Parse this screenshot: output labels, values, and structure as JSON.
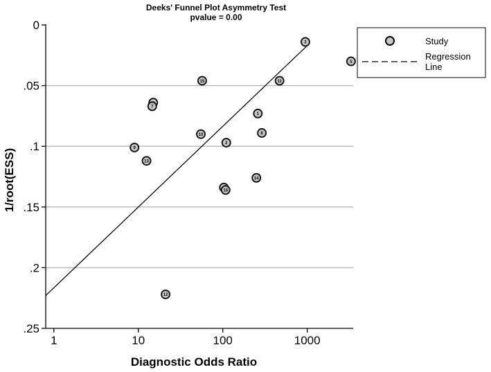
{
  "chart_data": {
    "type": "scatter",
    "title": "Deeks' Funnel Plot Asymmetry Test",
    "subtitle": "pvalue  =   0.00",
    "xlabel": "Diagnostic Odds Ratio",
    "ylabel": "1/root(ESS)",
    "x_scale": "log",
    "xlim": [
      0.8,
      3500
    ],
    "ylim": [
      0.25,
      0
    ],
    "y_inverted": true,
    "x_ticks": [
      "1",
      "10",
      "100",
      "1000"
    ],
    "x_tick_values": [
      1,
      10,
      100,
      1000
    ],
    "y_ticks": [
      "0",
      ".05",
      ".1",
      ".15",
      ".2",
      ".25"
    ],
    "y_tick_values": [
      0,
      0.05,
      0.1,
      0.15,
      0.2,
      0.25
    ],
    "grid": "horizontal",
    "legend_position": "right",
    "legend": [
      {
        "label": "Study",
        "marker": "circle"
      },
      {
        "label": "Regression\nLine",
        "marker": "dashed-line"
      }
    ],
    "series": [
      {
        "name": "Study",
        "points": [
          {
            "label": "3",
            "x": 950,
            "y": 0.014
          },
          {
            "label": "5",
            "x": 3300,
            "y": 0.03
          },
          {
            "label": "11",
            "x": 470,
            "y": 0.046
          },
          {
            "label": "15",
            "x": 57,
            "y": 0.046
          },
          {
            "label": "6",
            "x": 15,
            "y": 0.064
          },
          {
            "label": "7",
            "x": 14.6,
            "y": 0.067
          },
          {
            "label": "1",
            "x": 260,
            "y": 0.073
          },
          {
            "label": "8",
            "x": 290,
            "y": 0.089
          },
          {
            "label": "10",
            "x": 55,
            "y": 0.09
          },
          {
            "label": "2",
            "x": 110,
            "y": 0.097
          },
          {
            "label": "9",
            "x": 9,
            "y": 0.101
          },
          {
            "label": "13",
            "x": 12.5,
            "y": 0.112
          },
          {
            "label": "14",
            "x": 250,
            "y": 0.126
          },
          {
            "label": "4",
            "x": 103,
            "y": 0.134
          },
          {
            "label": "16",
            "x": 108,
            "y": 0.136
          },
          {
            "label": "12",
            "x": 21,
            "y": 0.222
          }
        ]
      }
    ],
    "regression_line": [
      {
        "x": 0.8,
        "y": 0.223
      },
      {
        "x": 1000,
        "y": 0.017
      }
    ]
  }
}
